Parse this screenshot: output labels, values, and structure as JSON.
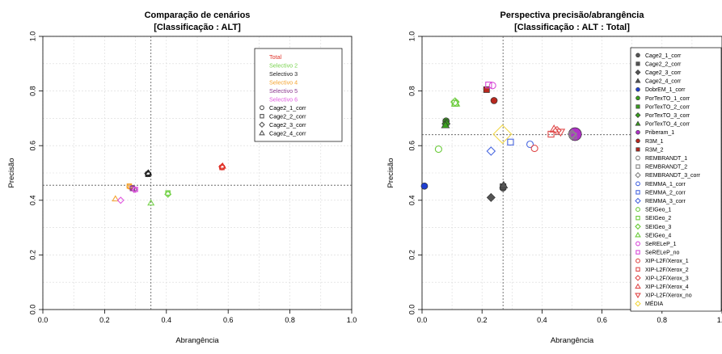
{
  "chart_data": [
    {
      "type": "scatter",
      "title": "Comparação de cenários",
      "subtitle": "[Classificação : ALT]",
      "xlabel": "Abrangência",
      "ylabel": "Precisão",
      "xlim": [
        0,
        1
      ],
      "ylim": [
        0,
        1
      ],
      "xticks": [
        "0.0",
        "0.2",
        "0.4",
        "0.6",
        "0.8",
        "1.0"
      ],
      "yticks": [
        "0.0",
        "0.2",
        "0.4",
        "0.6",
        "0.8",
        "1.0"
      ],
      "grid": true,
      "legend_position": "top-right",
      "reference_lines": {
        "x": 0.35,
        "y": 0.455
      },
      "legend": [
        {
          "label": "Total",
          "color": "#e0342b",
          "shape": "none"
        },
        {
          "label": "Selectivo 2",
          "color": "#79d34f",
          "shape": "none"
        },
        {
          "label": "Selectivo 3",
          "color": "#222222",
          "shape": "none"
        },
        {
          "label": "Selectivo 4",
          "color": "#f5a430",
          "shape": "none"
        },
        {
          "label": "Selectivo 5",
          "color": "#8b3a8f",
          "shape": "none"
        },
        {
          "label": "Selectivo 6",
          "color": "#e05ce0",
          "shape": "none"
        },
        {
          "label": "Cage2_1_corr",
          "color": "#555555",
          "shape": "circle-open"
        },
        {
          "label": "Cage2_2_corr",
          "color": "#555555",
          "shape": "square-open"
        },
        {
          "label": "Cage2_3_corr",
          "color": "#555555",
          "shape": "diamond-open"
        },
        {
          "label": "Cage2_4_corr",
          "color": "#555555",
          "shape": "triangle-open"
        }
      ],
      "points": [
        {
          "x": 0.58,
          "y": 0.52,
          "color": "#e0342b",
          "shape": "circle-open"
        },
        {
          "x": 0.58,
          "y": 0.52,
          "color": "#e0342b",
          "shape": "square-open"
        },
        {
          "x": 0.58,
          "y": 0.523,
          "color": "#e0342b",
          "shape": "diamond-open"
        },
        {
          "x": 0.582,
          "y": 0.525,
          "color": "#e0342b",
          "shape": "triangle-open"
        },
        {
          "x": 0.34,
          "y": 0.497,
          "color": "#222222",
          "shape": "circle-open"
        },
        {
          "x": 0.34,
          "y": 0.495,
          "color": "#222222",
          "shape": "square-open"
        },
        {
          "x": 0.34,
          "y": 0.498,
          "color": "#222222",
          "shape": "diamond-open"
        },
        {
          "x": 0.342,
          "y": 0.5,
          "color": "#222222",
          "shape": "triangle-open"
        },
        {
          "x": 0.405,
          "y": 0.425,
          "color": "#79d34f",
          "shape": "circle-open"
        },
        {
          "x": 0.405,
          "y": 0.427,
          "color": "#79d34f",
          "shape": "square-open"
        },
        {
          "x": 0.405,
          "y": 0.422,
          "color": "#79d34f",
          "shape": "diamond-open"
        },
        {
          "x": 0.35,
          "y": 0.39,
          "color": "#79d34f",
          "shape": "triangle-open"
        },
        {
          "x": 0.28,
          "y": 0.45,
          "color": "#f5a430",
          "shape": "circle-open"
        },
        {
          "x": 0.28,
          "y": 0.452,
          "color": "#f5a430",
          "shape": "square-open"
        },
        {
          "x": 0.285,
          "y": 0.448,
          "color": "#f5a430",
          "shape": "diamond-open"
        },
        {
          "x": 0.235,
          "y": 0.405,
          "color": "#f5a430",
          "shape": "triangle-open"
        },
        {
          "x": 0.29,
          "y": 0.445,
          "color": "#8b3a8f",
          "shape": "circle-open"
        },
        {
          "x": 0.29,
          "y": 0.443,
          "color": "#8b3a8f",
          "shape": "square-open"
        },
        {
          "x": 0.295,
          "y": 0.44,
          "color": "#8b3a8f",
          "shape": "diamond-open"
        },
        {
          "x": 0.298,
          "y": 0.438,
          "color": "#e05ce0",
          "shape": "circle-open"
        },
        {
          "x": 0.3,
          "y": 0.44,
          "color": "#e05ce0",
          "shape": "square-open"
        },
        {
          "x": 0.252,
          "y": 0.4,
          "color": "#e05ce0",
          "shape": "diamond-open"
        }
      ]
    },
    {
      "type": "scatter",
      "title": "Perspectiva precisão/abrangência",
      "subtitle": "[Classificação : ALT : Total]",
      "xlabel": "Abrangência",
      "ylabel": "Precisão",
      "xlim": [
        0,
        1
      ],
      "ylim": [
        0,
        1
      ],
      "xticks": [
        "0.0",
        "0.2",
        "0.4",
        "0.6",
        "0.8",
        "1.0"
      ],
      "yticks": [
        "0.0",
        "0.2",
        "0.4",
        "0.6",
        "0.8",
        "1.0"
      ],
      "grid": true,
      "legend_position": "top-right",
      "reference_lines": {
        "x": 0.27,
        "y": 0.64
      },
      "legend": [
        {
          "label": "Cage2_1_corr",
          "color": "#555555",
          "shape": "circle-filled"
        },
        {
          "label": "Cage2_2_corr",
          "color": "#555555",
          "shape": "square-filled"
        },
        {
          "label": "Cage2_3_corr",
          "color": "#555555",
          "shape": "diamond-filled"
        },
        {
          "label": "Cage2_4_corr",
          "color": "#555555",
          "shape": "triangle-filled"
        },
        {
          "label": "DobrEM_1_corr",
          "color": "#1f3fd1",
          "shape": "circle-filled"
        },
        {
          "label": "PorTexTO_1_corr",
          "color": "#3aa01e",
          "shape": "circle-filled"
        },
        {
          "label": "PorTexTO_2_corr",
          "color": "#3aa01e",
          "shape": "square-filled"
        },
        {
          "label": "PorTexTO_3_corr",
          "color": "#3aa01e",
          "shape": "diamond-filled"
        },
        {
          "label": "PorTexTO_4_corr",
          "color": "#3aa01e",
          "shape": "triangle-filled"
        },
        {
          "label": "Priberam_1",
          "color": "#b030c8",
          "shape": "circle-filled"
        },
        {
          "label": "R3M_1",
          "color": "#b8281e",
          "shape": "circle-filled"
        },
        {
          "label": "R3M_2",
          "color": "#b8281e",
          "shape": "square-filled"
        },
        {
          "label": "REMBRANDT_1",
          "color": "#888888",
          "shape": "circle-open"
        },
        {
          "label": "REMBRANDT_2",
          "color": "#888888",
          "shape": "square-open"
        },
        {
          "label": "REMBRANDT_3_corr",
          "color": "#888888",
          "shape": "diamond-open"
        },
        {
          "label": "REMMA_1_corr",
          "color": "#4a68e0",
          "shape": "circle-open"
        },
        {
          "label": "REMMA_2_corr",
          "color": "#4a68e0",
          "shape": "square-open"
        },
        {
          "label": "REMMA_3_corr",
          "color": "#4a68e0",
          "shape": "diamond-open"
        },
        {
          "label": "SEIGeo_1",
          "color": "#6ccb3c",
          "shape": "circle-open"
        },
        {
          "label": "SEIGeo_2",
          "color": "#6ccb3c",
          "shape": "square-open"
        },
        {
          "label": "SEIGeo_3",
          "color": "#6ccb3c",
          "shape": "diamond-open"
        },
        {
          "label": "SEIGeo_4",
          "color": "#6ccb3c",
          "shape": "triangle-open"
        },
        {
          "label": "SeRELeP_1",
          "color": "#d84ad8",
          "shape": "circle-open"
        },
        {
          "label": "SeRELeP_no",
          "color": "#d84ad8",
          "shape": "square-open"
        },
        {
          "label": "XIP-L2F/Xerox_1",
          "color": "#e04a4a",
          "shape": "circle-open"
        },
        {
          "label": "XIP-L2F/Xerox_2",
          "color": "#e04a4a",
          "shape": "square-open"
        },
        {
          "label": "XIP-L2F/Xerox_3",
          "color": "#e04a4a",
          "shape": "diamond-open"
        },
        {
          "label": "XIP-L2F/Xerox_4",
          "color": "#e04a4a",
          "shape": "triangle-open"
        },
        {
          "label": "XIP-L2F/Xerox_no",
          "color": "#e04a4a",
          "shape": "triangle-down-open"
        },
        {
          "label": "MÉDIA",
          "color": "#f2d84a",
          "shape": "diamond-open"
        }
      ],
      "points": [
        {
          "x": 0.27,
          "y": 0.445,
          "color": "#555555",
          "shape": "circle-filled",
          "size": 4
        },
        {
          "x": 0.27,
          "y": 0.45,
          "color": "#555555",
          "shape": "square-filled",
          "size": 4
        },
        {
          "x": 0.23,
          "y": 0.41,
          "color": "#555555",
          "shape": "diamond-filled",
          "size": 4
        },
        {
          "x": 0.272,
          "y": 0.455,
          "color": "#555555",
          "shape": "triangle-filled",
          "size": 4
        },
        {
          "x": 0.008,
          "y": 0.452,
          "color": "#1f3fd1",
          "shape": "circle-filled",
          "size": 4
        },
        {
          "x": 0.08,
          "y": 0.69,
          "color": "#3aa01e",
          "shape": "circle-filled",
          "size": 4
        },
        {
          "x": 0.08,
          "y": 0.685,
          "color": "#3aa01e",
          "shape": "square-filled",
          "size": 4
        },
        {
          "x": 0.08,
          "y": 0.68,
          "color": "#3aa01e",
          "shape": "diamond-filled",
          "size": 4
        },
        {
          "x": 0.078,
          "y": 0.675,
          "color": "#3aa01e",
          "shape": "triangle-filled",
          "size": 4
        },
        {
          "x": 0.51,
          "y": 0.642,
          "color": "#b030c8",
          "shape": "circle-filled",
          "size": 8
        },
        {
          "x": 0.24,
          "y": 0.765,
          "color": "#b8281e",
          "shape": "circle-filled",
          "size": 4
        },
        {
          "x": 0.215,
          "y": 0.805,
          "color": "#b8281e",
          "shape": "square-filled",
          "size": 4
        },
        {
          "x": 0.5,
          "y": 0.64,
          "color": "#888888",
          "shape": "circle-open",
          "size": 4
        },
        {
          "x": 0.505,
          "y": 0.635,
          "color": "#888888",
          "shape": "square-open",
          "size": 4
        },
        {
          "x": 0.5,
          "y": 0.643,
          "color": "#888888",
          "shape": "diamond-open",
          "size": 4
        },
        {
          "x": 0.36,
          "y": 0.605,
          "color": "#4a68e0",
          "shape": "circle-open",
          "size": 4
        },
        {
          "x": 0.295,
          "y": 0.613,
          "color": "#4a68e0",
          "shape": "square-open",
          "size": 4
        },
        {
          "x": 0.23,
          "y": 0.58,
          "color": "#4a68e0",
          "shape": "diamond-open",
          "size": 4
        },
        {
          "x": 0.055,
          "y": 0.587,
          "color": "#6ccb3c",
          "shape": "circle-open",
          "size": 4
        },
        {
          "x": 0.11,
          "y": 0.755,
          "color": "#6ccb3c",
          "shape": "square-open",
          "size": 4
        },
        {
          "x": 0.11,
          "y": 0.76,
          "color": "#6ccb3c",
          "shape": "diamond-open",
          "size": 4
        },
        {
          "x": 0.112,
          "y": 0.755,
          "color": "#6ccb3c",
          "shape": "triangle-open",
          "size": 4
        },
        {
          "x": 0.235,
          "y": 0.82,
          "color": "#d84ad8",
          "shape": "circle-open",
          "size": 4
        },
        {
          "x": 0.222,
          "y": 0.822,
          "color": "#d84ad8",
          "shape": "square-open",
          "size": 4
        },
        {
          "x": 0.375,
          "y": 0.59,
          "color": "#e04a4a",
          "shape": "circle-open",
          "size": 4
        },
        {
          "x": 0.43,
          "y": 0.642,
          "color": "#e04a4a",
          "shape": "square-open",
          "size": 4
        },
        {
          "x": 0.45,
          "y": 0.655,
          "color": "#e04a4a",
          "shape": "diamond-open",
          "size": 4
        },
        {
          "x": 0.44,
          "y": 0.66,
          "color": "#e04a4a",
          "shape": "triangle-open",
          "size": 4
        },
        {
          "x": 0.462,
          "y": 0.65,
          "color": "#e04a4a",
          "shape": "triangle-down-open",
          "size": 4
        },
        {
          "x": 0.268,
          "y": 0.642,
          "color": "#f2d84a",
          "shape": "diamond-open",
          "size": 9
        }
      ]
    }
  ]
}
